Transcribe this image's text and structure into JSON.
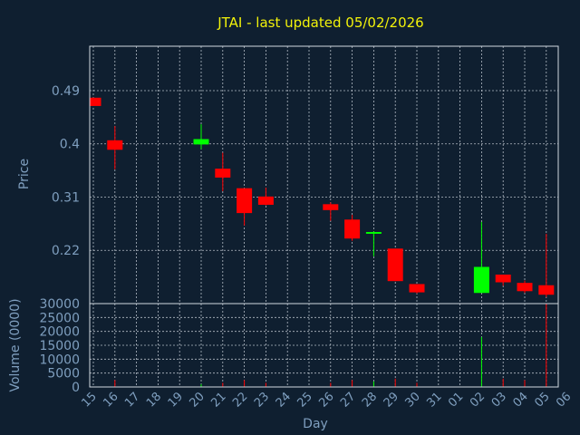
{
  "chart_data": {
    "type": "candlestick",
    "title": "JTAI - last updated 05/02/2026",
    "xlabel": "Day",
    "price_axis": {
      "label": "Price",
      "ticks": [
        "0.22",
        "0.31",
        "0.4",
        "0.49"
      ],
      "tick_values": [
        0.22,
        0.31,
        0.4,
        0.49
      ],
      "ylim": [
        0.13,
        0.565
      ]
    },
    "volume_axis": {
      "label": "Volume (0000)",
      "ticks": [
        "0",
        "5000",
        "10000",
        "15000",
        "20000",
        "25000",
        "30000"
      ],
      "tick_values": [
        0,
        5000,
        10000,
        15000,
        20000,
        25000,
        30000
      ],
      "ylim": [
        0,
        30000
      ]
    },
    "x_ticks": [
      "15",
      "16",
      "17",
      "18",
      "19",
      "20",
      "21",
      "22",
      "23",
      "24",
      "25",
      "26",
      "27",
      "28",
      "29",
      "30",
      "31",
      "01",
      "02",
      "03",
      "04",
      "05",
      "06"
    ],
    "grid": true,
    "colors": {
      "up": "#00ff00",
      "down": "#ff0000",
      "background": "#0f1f30",
      "title": "#f2f20a",
      "axis": "#7f9fbf"
    },
    "candles": [
      {
        "day": "15",
        "open": 0.478,
        "high": 0.478,
        "low": 0.464,
        "close": 0.464
      },
      {
        "day": "16",
        "open": 0.406,
        "high": 0.43,
        "low": 0.357,
        "close": 0.39
      },
      {
        "day": "20",
        "open": 0.399,
        "high": 0.433,
        "low": 0.391,
        "close": 0.408
      },
      {
        "day": "21",
        "open": 0.358,
        "high": 0.385,
        "low": 0.32,
        "close": 0.343
      },
      {
        "day": "22",
        "open": 0.325,
        "high": 0.325,
        "low": 0.262,
        "close": 0.283
      },
      {
        "day": "23",
        "open": 0.311,
        "high": 0.326,
        "low": 0.296,
        "close": 0.297
      },
      {
        "day": "26",
        "open": 0.298,
        "high": 0.301,
        "low": 0.27,
        "close": 0.288
      },
      {
        "day": "27",
        "open": 0.272,
        "high": 0.28,
        "low": 0.236,
        "close": 0.24
      },
      {
        "day": "28",
        "open": 0.248,
        "high": 0.252,
        "low": 0.21,
        "close": 0.251
      },
      {
        "day": "29",
        "open": 0.223,
        "high": 0.223,
        "low": 0.168,
        "close": 0.168
      },
      {
        "day": "30",
        "open": 0.163,
        "high": 0.163,
        "low": 0.147,
        "close": 0.149
      },
      {
        "day": "02",
        "open": 0.148,
        "high": 0.268,
        "low": 0.148,
        "close": 0.192
      },
      {
        "day": "03",
        "open": 0.179,
        "high": 0.179,
        "low": 0.16,
        "close": 0.166
      },
      {
        "day": "04",
        "open": 0.165,
        "high": 0.169,
        "low": 0.148,
        "close": 0.151
      },
      {
        "day": "05",
        "open": 0.161,
        "high": 0.248,
        "low": 0.141,
        "close": 0.145
      }
    ],
    "volumes": [
      {
        "day": "15",
        "value": 0,
        "dir": "down"
      },
      {
        "day": "16",
        "value": 2500,
        "dir": "down"
      },
      {
        "day": "20",
        "value": 1000,
        "dir": "up"
      },
      {
        "day": "21",
        "value": 1500,
        "dir": "down"
      },
      {
        "day": "22",
        "value": 2500,
        "dir": "down"
      },
      {
        "day": "23",
        "value": 1500,
        "dir": "down"
      },
      {
        "day": "26",
        "value": 1500,
        "dir": "down"
      },
      {
        "day": "27",
        "value": 2500,
        "dir": "down"
      },
      {
        "day": "28",
        "value": 2000,
        "dir": "up"
      },
      {
        "day": "29",
        "value": 3000,
        "dir": "down"
      },
      {
        "day": "30",
        "value": 1500,
        "dir": "down"
      },
      {
        "day": "02",
        "value": 18000,
        "dir": "up"
      },
      {
        "day": "03",
        "value": 3000,
        "dir": "down"
      },
      {
        "day": "04",
        "value": 2500,
        "dir": "down"
      },
      {
        "day": "05",
        "value": 30000,
        "dir": "down"
      }
    ]
  }
}
